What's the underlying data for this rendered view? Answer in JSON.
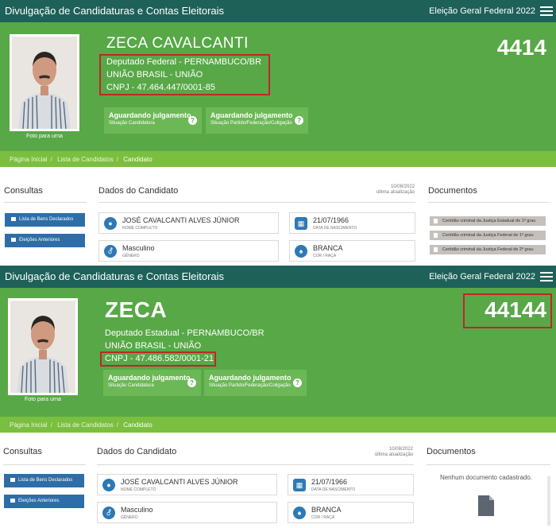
{
  "panels": [
    {
      "site_title": "Divulgação de Candidaturas e Contas Eleitorais",
      "election": "Eleição Geral Federal 2022",
      "candidate": {
        "name": "ZECA CAVALCANTI",
        "office_line": "Deputado Federal - PERNAMBUCO/BR",
        "party_line": "UNIÃO BRASIL - UNIÃO",
        "cnpj_line": "CNPJ - 47.464.447/0001-85",
        "number": "4414",
        "photo_caption": "Foto para urna"
      },
      "status_cards": [
        {
          "value": "Aguardando julgamento",
          "label": "Situação Candidatura",
          "icon": "help-icon"
        },
        {
          "value": "Aguardando julgamento",
          "label": "Situação Partido/Federação/Coligação",
          "icon": "help-icon"
        }
      ],
      "breadcrumb": [
        "Página Inicial",
        "Lista de Candidatos",
        "Candidato"
      ],
      "sections": {
        "consultas": "Consultas",
        "dados": "Dados do Candidato",
        "documentos": "Documentos"
      },
      "updated": {
        "date": "10/08/2022",
        "label": "última atualização"
      },
      "consultas_buttons": [
        "Lista de Bens Declarados",
        "Eleições Anteriores"
      ],
      "dados": [
        {
          "value": "JOSÉ CAVALCANTI ALVES JÚNIOR",
          "label": "NOME COMPLETO",
          "icon": "person-icon"
        },
        {
          "value": "21/07/1966",
          "label": "DATA DE NASCIMENTO",
          "icon": "calendar-icon"
        },
        {
          "value": "Masculino",
          "label": "GÊNERO",
          "icon": "gender-icon"
        },
        {
          "value": "BRANCA",
          "label": "COR / RAÇA",
          "icon": "person-standing-icon"
        }
      ],
      "documentos": [
        "Certidão criminal da Justiça Estadual de 1º grau",
        "Certidão criminal da Justiça Federal de 1º grau",
        "Certidão criminal da Justiça Federal de 2º grau"
      ]
    },
    {
      "site_title": "Divulgação de Candidaturas e Contas Eleitorais",
      "election": "Eleição Geral Federal 2022",
      "candidate": {
        "name": "ZECA",
        "office_line": "Deputado Estadual - PERNAMBUCO/BR",
        "party_line": "UNIÃO BRASIL - UNIÃO",
        "cnpj_line": "CNPJ - 47.486.582/0001-21",
        "number": "44144",
        "photo_caption": "Foto para urna"
      },
      "status_cards": [
        {
          "value": "Aguardando julgamento",
          "label": "Situação Candidatura",
          "icon": "help-icon"
        },
        {
          "value": "Aguardando julgamento",
          "label": "Situação Partido/Federação/Coligação",
          "icon": "help-icon"
        }
      ],
      "breadcrumb": [
        "Página Inicial",
        "Lista de Candidatos",
        "Candidato"
      ],
      "sections": {
        "consultas": "Consultas",
        "dados": "Dados do Candidato",
        "documentos": "Documentos"
      },
      "updated": {
        "date": "10/08/2022",
        "label": "última atualização"
      },
      "consultas_buttons": [
        "Lista de Bens Declarados",
        "Eleições Anteriores"
      ],
      "dados": [
        {
          "value": "JOSÉ CAVALCANTI ALVES JÚNIOR",
          "label": "NOME COMPLETO",
          "icon": "person-icon"
        },
        {
          "value": "21/07/1966",
          "label": "DATA DE NASCIMENTO",
          "icon": "calendar-icon"
        },
        {
          "value": "Masculino",
          "label": "GÊNERO",
          "icon": "gender-icon"
        },
        {
          "value": "BRANCA",
          "label": "COR / RAÇA",
          "icon": "person-standing-icon"
        }
      ],
      "documentos_empty": "Nenhum documento cadastrado."
    }
  ],
  "colors": {
    "topbar": "#1e6159",
    "hero": "#58a847",
    "breadcrumb": "#7abf3f",
    "status_card": "#6cb856",
    "button": "#2d6ea8",
    "highlight": "#c0262b"
  }
}
